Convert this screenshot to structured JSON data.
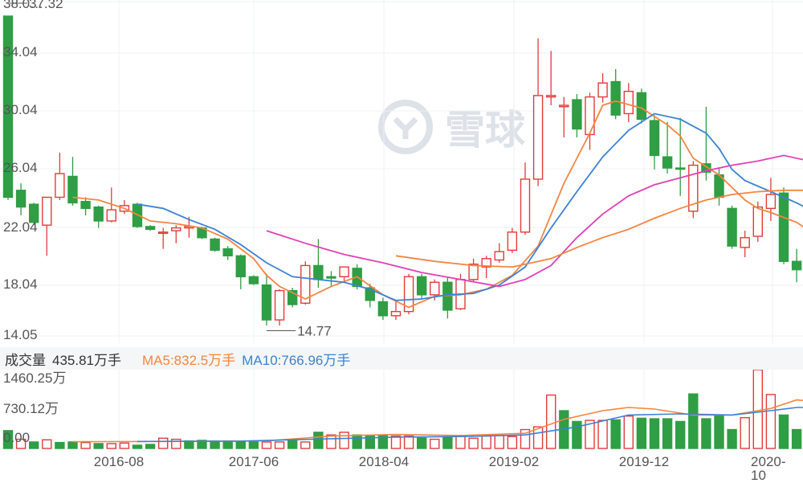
{
  "chart_data": {
    "type": "candlestick",
    "price_axis": {
      "ticks": [
        "38.0…",
        "34.04",
        "30.04",
        "26.04",
        "22.04",
        "18.04",
        "14.05"
      ],
      "range": [
        14.05,
        38.04
      ]
    },
    "annotations": {
      "high_label": "37.32",
      "low_label": "14.77"
    },
    "x_ticks": [
      "2016-08",
      "2017-06",
      "2018-04",
      "2019-02",
      "2019-12",
      "2020-10"
    ],
    "candles": [
      {
        "o": 24,
        "h": 37,
        "l": 23.8,
        "c": 37,
        "dir": "down"
      },
      {
        "o": 24.5,
        "h": 25,
        "l": 22.7,
        "c": 23.3,
        "dir": "down"
      },
      {
        "o": 23.5,
        "h": 23.6,
        "l": 22,
        "c": 22.2,
        "dir": "down"
      },
      {
        "o": 22,
        "h": 24,
        "l": 19.8,
        "c": 24,
        "dir": "up"
      },
      {
        "o": 24,
        "h": 27.2,
        "l": 23.8,
        "c": 25.7,
        "dir": "up"
      },
      {
        "o": 25.5,
        "h": 26.9,
        "l": 23.4,
        "c": 23.6,
        "dir": "down"
      },
      {
        "o": 23.7,
        "h": 24,
        "l": 22.7,
        "c": 23.2,
        "dir": "down"
      },
      {
        "o": 23.3,
        "h": 23.4,
        "l": 21.8,
        "c": 22.3,
        "dir": "down"
      },
      {
        "o": 22.3,
        "h": 24.7,
        "l": 22.2,
        "c": 23.1,
        "dir": "up"
      },
      {
        "o": 23,
        "h": 23.8,
        "l": 22.8,
        "c": 23.4,
        "dir": "up"
      },
      {
        "o": 23.5,
        "h": 23.6,
        "l": 21.8,
        "c": 21.9,
        "dir": "down"
      },
      {
        "o": 21.9,
        "h": 22,
        "l": 21.6,
        "c": 21.7,
        "dir": "down"
      },
      {
        "o": 21.5,
        "h": 21.8,
        "l": 20.3,
        "c": 21.5,
        "dir": "up"
      },
      {
        "o": 21.6,
        "h": 22,
        "l": 20.7,
        "c": 21.8,
        "dir": "up"
      },
      {
        "o": 21.8,
        "h": 22.6,
        "l": 21.1,
        "c": 21.9,
        "dir": "up"
      },
      {
        "o": 21.8,
        "h": 21.9,
        "l": 21,
        "c": 21.1,
        "dir": "down"
      },
      {
        "o": 21,
        "h": 21.1,
        "l": 20.1,
        "c": 20.2,
        "dir": "down"
      },
      {
        "o": 20.3,
        "h": 20.5,
        "l": 19.5,
        "c": 19.8,
        "dir": "down"
      },
      {
        "o": 19.8,
        "h": 19.9,
        "l": 17.4,
        "c": 18.3,
        "dir": "down"
      },
      {
        "o": 18.3,
        "h": 18.4,
        "l": 17.7,
        "c": 17.8,
        "dir": "down"
      },
      {
        "o": 17.7,
        "h": 18.5,
        "l": 14.8,
        "c": 15.2,
        "dir": "down"
      },
      {
        "o": 15.2,
        "h": 17.4,
        "l": 14.8,
        "c": 17.3,
        "dir": "up"
      },
      {
        "o": 17.3,
        "h": 17.5,
        "l": 16.1,
        "c": 16.3,
        "dir": "down"
      },
      {
        "o": 16.4,
        "h": 19.4,
        "l": 16.3,
        "c": 19.1,
        "dir": "up"
      },
      {
        "o": 19.1,
        "h": 21,
        "l": 17.5,
        "c": 18.1,
        "dir": "down"
      },
      {
        "o": 18.2,
        "h": 18.7,
        "l": 17.6,
        "c": 18.3,
        "dir": "down"
      },
      {
        "o": 18.3,
        "h": 19,
        "l": 17.9,
        "c": 19,
        "dir": "up"
      },
      {
        "o": 18.9,
        "h": 19.2,
        "l": 17.4,
        "c": 17.6,
        "dir": "down"
      },
      {
        "o": 17.5,
        "h": 17.8,
        "l": 16.1,
        "c": 16.6,
        "dir": "down"
      },
      {
        "o": 16.5,
        "h": 16.8,
        "l": 15.2,
        "c": 15.5,
        "dir": "down"
      },
      {
        "o": 15.5,
        "h": 16.5,
        "l": 15.2,
        "c": 15.8,
        "dir": "up"
      },
      {
        "o": 15.8,
        "h": 18.5,
        "l": 15.6,
        "c": 18.3,
        "dir": "up"
      },
      {
        "o": 18.3,
        "h": 18.5,
        "l": 16.7,
        "c": 17,
        "dir": "down"
      },
      {
        "o": 17,
        "h": 18.1,
        "l": 16.6,
        "c": 17.9,
        "dir": "up"
      },
      {
        "o": 17.9,
        "h": 18.3,
        "l": 15.3,
        "c": 15.9,
        "dir": "down"
      },
      {
        "o": 16,
        "h": 18.5,
        "l": 15.9,
        "c": 18.1,
        "dir": "up"
      },
      {
        "o": 18.1,
        "h": 19.6,
        "l": 17.9,
        "c": 19.2,
        "dir": "up"
      },
      {
        "o": 19,
        "h": 19.8,
        "l": 18.2,
        "c": 19.6,
        "dir": "up"
      },
      {
        "o": 19.5,
        "h": 20.7,
        "l": 19.3,
        "c": 20.1,
        "dir": "up"
      },
      {
        "o": 20.2,
        "h": 21.8,
        "l": 20,
        "c": 21.5,
        "dir": "up"
      },
      {
        "o": 21.5,
        "h": 26.5,
        "l": 21.3,
        "c": 25.3,
        "dir": "up"
      },
      {
        "o": 25.3,
        "h": 35.4,
        "l": 24.8,
        "c": 31.3,
        "dir": "up"
      },
      {
        "o": 31.2,
        "h": 34.5,
        "l": 30.6,
        "c": 31.3,
        "dir": "up"
      },
      {
        "o": 30.5,
        "h": 31.2,
        "l": 28.3,
        "c": 30.6,
        "dir": "up"
      },
      {
        "o": 31,
        "h": 31.4,
        "l": 28.3,
        "c": 28.9,
        "dir": "down"
      },
      {
        "o": 28.5,
        "h": 31.5,
        "l": 27.4,
        "c": 31.2,
        "dir": "up"
      },
      {
        "o": 31.2,
        "h": 32.9,
        "l": 30.8,
        "c": 32.2,
        "dir": "up"
      },
      {
        "o": 32.3,
        "h": 33.2,
        "l": 29.6,
        "c": 29.9,
        "dir": "down"
      },
      {
        "o": 30,
        "h": 32.2,
        "l": 29.4,
        "c": 31.6,
        "dir": "up"
      },
      {
        "o": 31.5,
        "h": 31.8,
        "l": 29.3,
        "c": 29.6,
        "dir": "down"
      },
      {
        "o": 29.5,
        "h": 29.9,
        "l": 26,
        "c": 27,
        "dir": "down"
      },
      {
        "o": 26.9,
        "h": 29.4,
        "l": 25.7,
        "c": 26.1,
        "dir": "down"
      },
      {
        "o": 26.1,
        "h": 29.7,
        "l": 24.1,
        "c": 26.1,
        "dir": "down"
      },
      {
        "o": 26.3,
        "h": 26.6,
        "l": 22.5,
        "c": 23,
        "dir": "up"
      },
      {
        "o": 25.8,
        "h": 30.5,
        "l": 25.2,
        "c": 26.4,
        "dir": "down"
      },
      {
        "o": 25.6,
        "h": 26.1,
        "l": 23.4,
        "c": 24,
        "dir": "down"
      },
      {
        "o": 23.2,
        "h": 23.4,
        "l": 20.3,
        "c": 20.5,
        "dir": "down"
      },
      {
        "o": 20.4,
        "h": 21.6,
        "l": 19.7,
        "c": 21.1,
        "dir": "up"
      },
      {
        "o": 21.2,
        "h": 23.7,
        "l": 20.8,
        "c": 23.3,
        "dir": "up"
      },
      {
        "o": 23.2,
        "h": 25.4,
        "l": 22.3,
        "c": 24.2,
        "dir": "up"
      },
      {
        "o": 24.3,
        "h": 24.7,
        "l": 19.2,
        "c": 19.4,
        "dir": "down"
      },
      {
        "o": 19.4,
        "h": 20.3,
        "l": 17.9,
        "c": 18.8,
        "dir": "down"
      },
      {
        "o": 18.8,
        "h": 20.1,
        "l": 18.5,
        "c": 20.1,
        "dir": "up"
      }
    ],
    "ma_series": [
      {
        "name": "",
        "color": "#f5853f",
        "points": [
          [
            5,
            24
          ],
          [
            7,
            23.8
          ],
          [
            9,
            23.2
          ],
          [
            11,
            22.3
          ],
          [
            13,
            22.1
          ],
          [
            15,
            21.8
          ],
          [
            17,
            21
          ],
          [
            19,
            19.6
          ],
          [
            20,
            18.4
          ],
          [
            21,
            17.6
          ],
          [
            23,
            16.7
          ],
          [
            25,
            17.6
          ],
          [
            27,
            18.3
          ],
          [
            29,
            17
          ],
          [
            31,
            16.1
          ],
          [
            33,
            16.9
          ],
          [
            35,
            17
          ],
          [
            37,
            17.4
          ],
          [
            39,
            18.4
          ],
          [
            41,
            20.5
          ],
          [
            43,
            25
          ],
          [
            45,
            28.6
          ],
          [
            46,
            30.6
          ],
          [
            47,
            30.9
          ],
          [
            49,
            30.4
          ],
          [
            51,
            29.2
          ],
          [
            52,
            28.4
          ],
          [
            53,
            26.8
          ],
          [
            55,
            25.6
          ],
          [
            57,
            23.8
          ],
          [
            58,
            23.2
          ],
          [
            59,
            22.9
          ],
          [
            61,
            22.2
          ],
          [
            62,
            21.6
          ],
          [
            63,
            21.2
          ]
        ]
      },
      {
        "name": "",
        "color": "#3b82d6",
        "points": [
          [
            10,
            23.5
          ],
          [
            12,
            23.2
          ],
          [
            14,
            22.4
          ],
          [
            16,
            21.7
          ],
          [
            18,
            20.6
          ],
          [
            20,
            19.3
          ],
          [
            22,
            18.3
          ],
          [
            24,
            18.1
          ],
          [
            26,
            17.9
          ],
          [
            28,
            17.4
          ],
          [
            30,
            16.6
          ],
          [
            32,
            16.7
          ],
          [
            34,
            17
          ],
          [
            36,
            17.1
          ],
          [
            38,
            17.7
          ],
          [
            40,
            19
          ],
          [
            42,
            21.8
          ],
          [
            44,
            24.4
          ],
          [
            46,
            26.9
          ],
          [
            48,
            28.8
          ],
          [
            50,
            30
          ],
          [
            52,
            29.6
          ],
          [
            54,
            28.6
          ],
          [
            55,
            27.5
          ],
          [
            56,
            26
          ],
          [
            57,
            25.2
          ],
          [
            59,
            24.4
          ],
          [
            61,
            23.6
          ],
          [
            63,
            22.6
          ]
        ]
      },
      {
        "name": "",
        "color": "#e040b8",
        "points": [
          [
            20,
            21.6
          ],
          [
            23,
            20.7
          ],
          [
            26,
            19.9
          ],
          [
            29,
            19.3
          ],
          [
            32,
            18.6
          ],
          [
            35,
            18.1
          ],
          [
            38,
            17.6
          ],
          [
            40,
            18.1
          ],
          [
            42,
            19.1
          ],
          [
            44,
            21.1
          ],
          [
            46,
            22.8
          ],
          [
            48,
            24.1
          ],
          [
            50,
            24.9
          ],
          [
            52,
            25.4
          ],
          [
            54,
            25.9
          ],
          [
            56,
            26.3
          ],
          [
            58,
            26.6
          ],
          [
            60,
            27
          ],
          [
            62,
            26.6
          ],
          [
            63,
            26
          ]
        ]
      },
      {
        "name": "",
        "color": "#f5853f",
        "points": [
          [
            30,
            19.8
          ],
          [
            33,
            19.4
          ],
          [
            36,
            19.1
          ],
          [
            39,
            19
          ],
          [
            42,
            19.6
          ],
          [
            44,
            20.4
          ],
          [
            46,
            21.1
          ],
          [
            48,
            21.7
          ],
          [
            50,
            22.5
          ],
          [
            52,
            23.2
          ],
          [
            54,
            23.8
          ],
          [
            56,
            24.2
          ],
          [
            58,
            24.4
          ],
          [
            60,
            24.5
          ],
          [
            62,
            24.5
          ],
          [
            63,
            24.5
          ]
        ]
      }
    ],
    "volume": {
      "header": {
        "label": "成交量",
        "value": "435.81万手",
        "ma5": "MA5:832.5万手",
        "ma10": "MA10:766.96万手"
      },
      "ticks": [
        "1460.25万",
        "730.12万",
        "0.00"
      ],
      "max": 1460.25,
      "values": [
        330,
        170,
        120,
        160,
        110,
        120,
        110,
        90,
        90,
        100,
        60,
        75,
        190,
        170,
        140,
        150,
        140,
        140,
        130,
        120,
        120,
        120,
        160,
        120,
        300,
        250,
        300,
        250,
        240,
        250,
        230,
        230,
        190,
        170,
        200,
        240,
        190,
        230,
        240,
        220,
        350,
        400,
        990,
        700,
        500,
        520,
        520,
        530,
        600,
        560,
        550,
        550,
        500,
        1010,
        550,
        610,
        350,
        570,
        1460,
        1000,
        620,
        350,
        400
      ],
      "dirs": [
        "down",
        "up",
        "down",
        "up",
        "down",
        "down",
        "up",
        "down",
        "up",
        "up",
        "down",
        "down",
        "up",
        "up",
        "down",
        "down",
        "down",
        "down",
        "down",
        "down",
        "up",
        "up",
        "down",
        "up",
        "down",
        "up",
        "up",
        "down",
        "down",
        "down",
        "up",
        "up",
        "down",
        "up",
        "down",
        "up",
        "up",
        "up",
        "up",
        "up",
        "up",
        "up",
        "up",
        "down",
        "down",
        "up",
        "up",
        "down",
        "up",
        "down",
        "down",
        "down",
        "down",
        "down",
        "down",
        "down",
        "down",
        "up",
        "up",
        "up",
        "down",
        "down",
        "up"
      ],
      "ma5": [
        [
          5,
          125
        ],
        [
          12,
          130
        ],
        [
          20,
          140
        ],
        [
          25,
          230
        ],
        [
          30,
          260
        ],
        [
          35,
          240
        ],
        [
          40,
          280
        ],
        [
          43,
          540
        ],
        [
          46,
          700
        ],
        [
          48,
          760
        ],
        [
          50,
          730
        ],
        [
          53,
          620
        ],
        [
          56,
          620
        ],
        [
          59,
          740
        ],
        [
          61,
          900
        ],
        [
          63,
          860
        ]
      ],
      "ma10": [
        [
          10,
          130
        ],
        [
          18,
          135
        ],
        [
          25,
          180
        ],
        [
          30,
          210
        ],
        [
          35,
          220
        ],
        [
          40,
          250
        ],
        [
          44,
          400
        ],
        [
          48,
          620
        ],
        [
          52,
          640
        ],
        [
          56,
          620
        ],
        [
          59,
          700
        ],
        [
          61,
          760
        ],
        [
          63,
          760
        ]
      ],
      "ma5_color": "#f5853f",
      "ma10_color": "#3b82d6"
    },
    "colors": {
      "up": "#e23b3b",
      "down": "#2f9e44",
      "grid": "#eef0f3"
    },
    "watermark": "雪球"
  }
}
